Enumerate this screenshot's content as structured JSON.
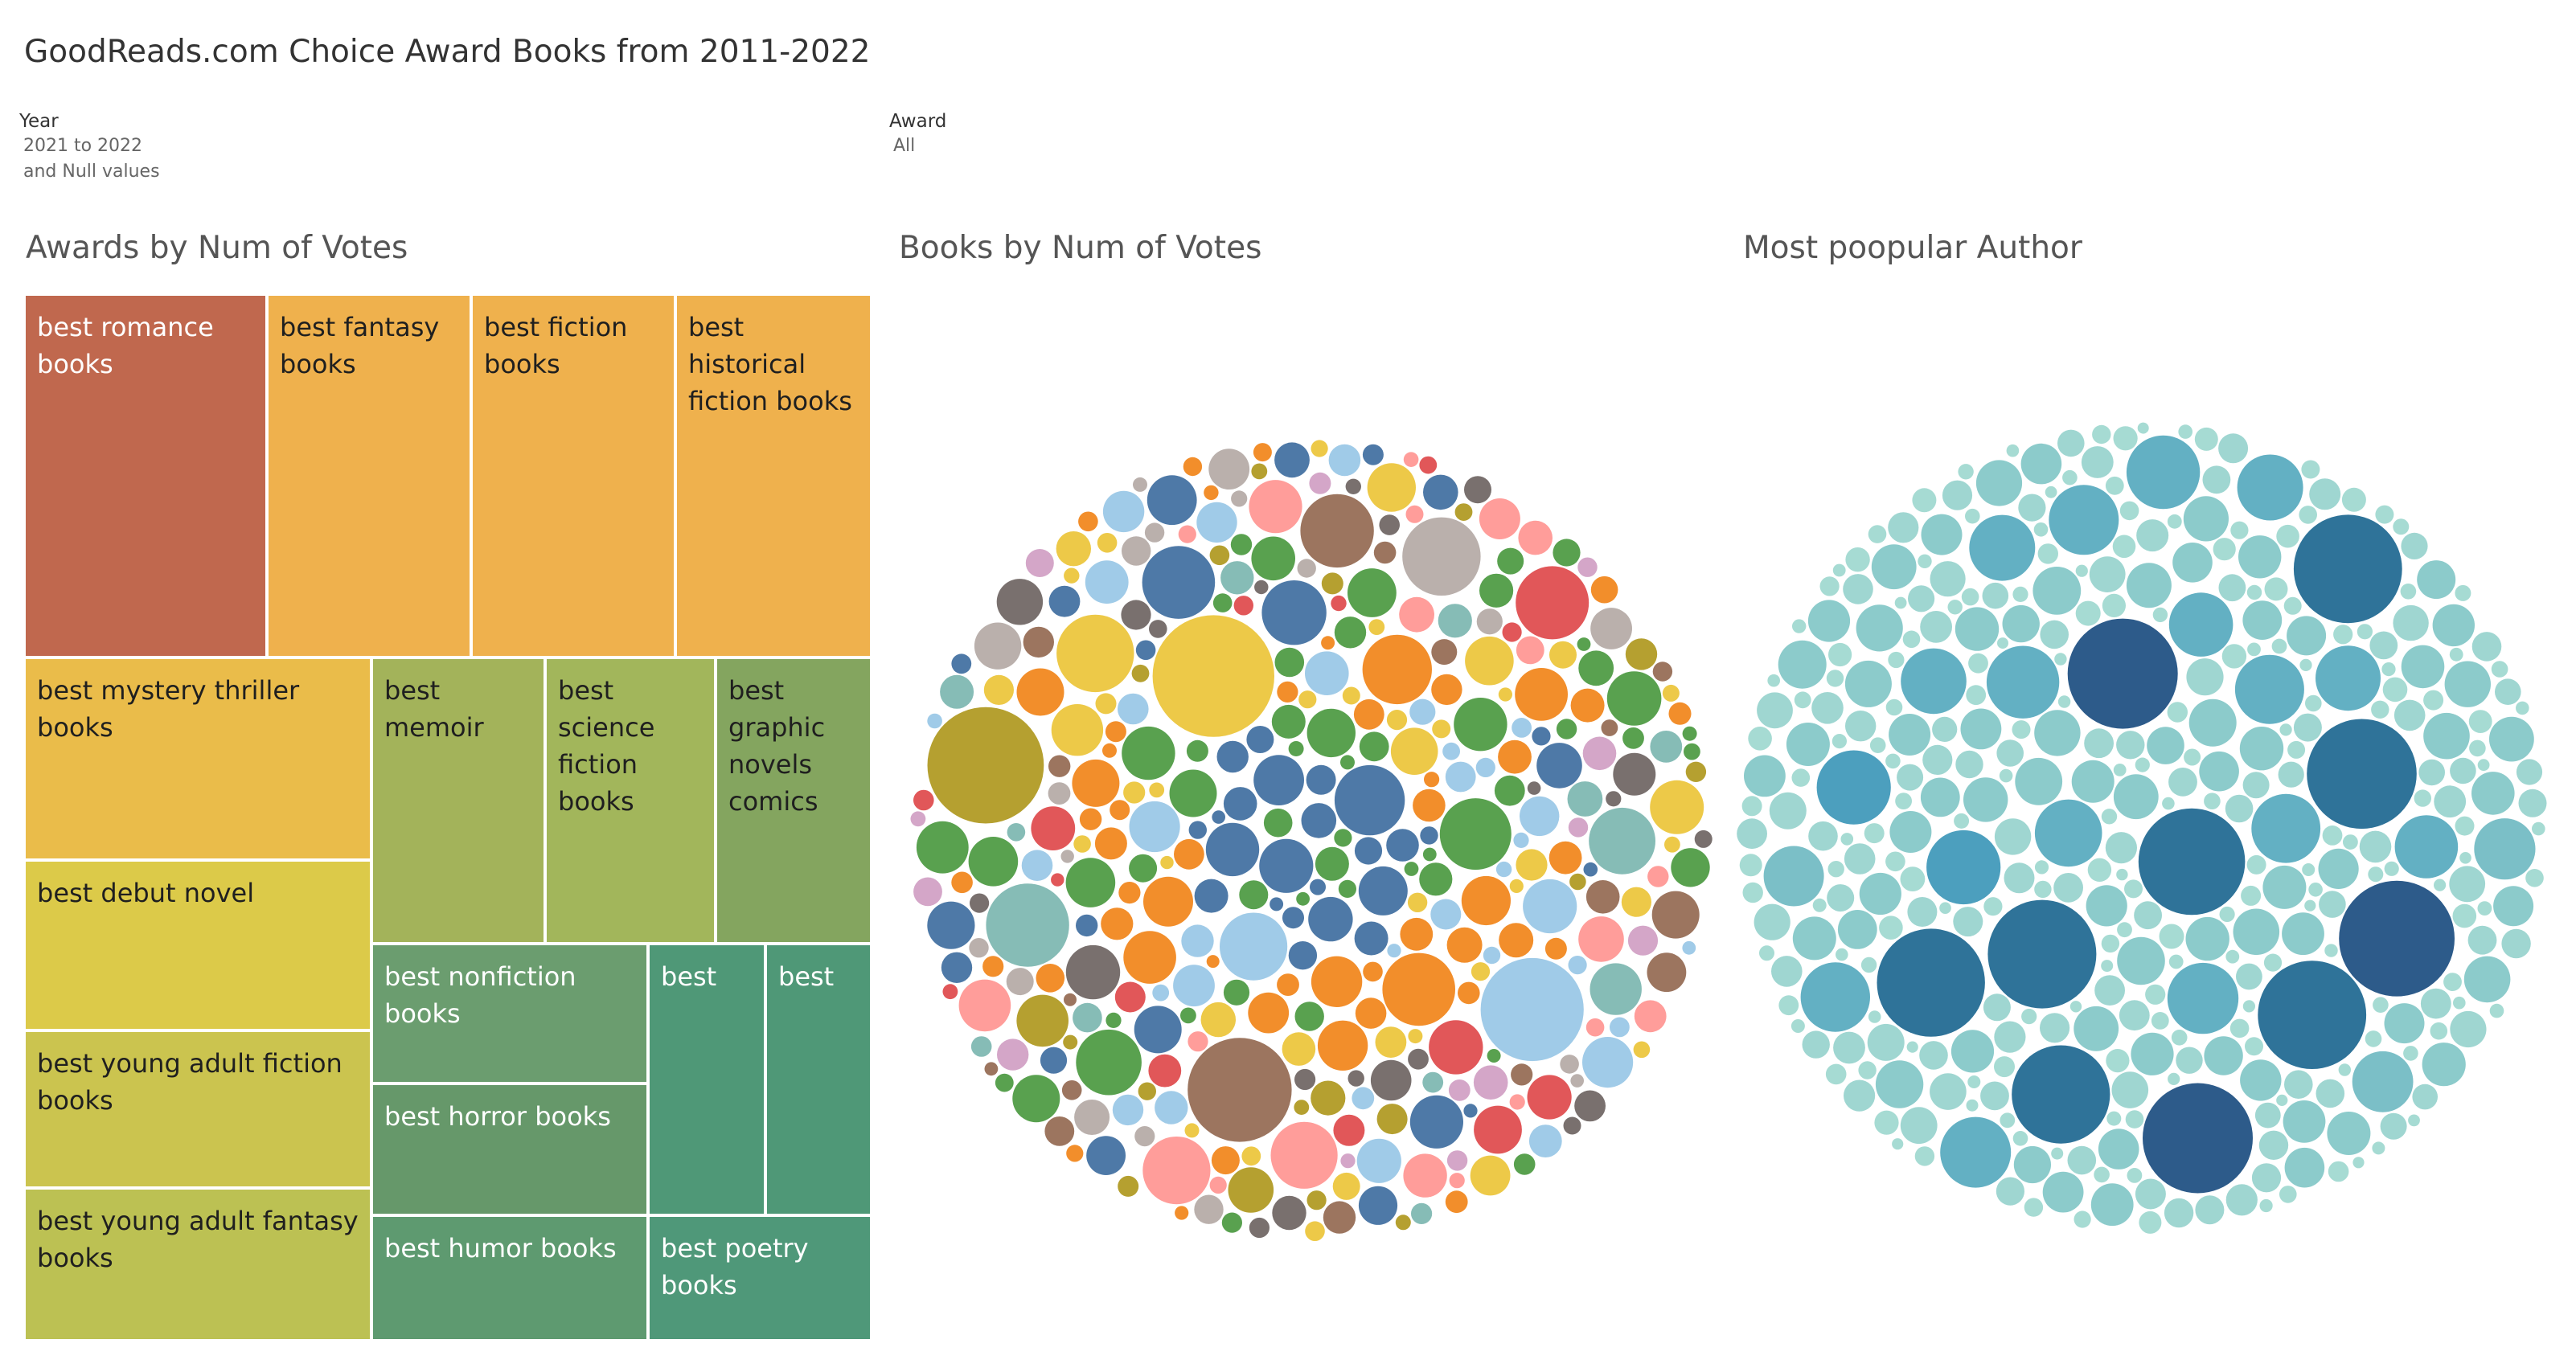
{
  "header": {
    "title": "GoodReads.com Choice Award Books from 2011-2022"
  },
  "filters": {
    "year": {
      "label": "Year",
      "value_line1": "2021 to 2022",
      "value_line2": "and Null values"
    },
    "award": {
      "label": "Award",
      "value": "All"
    }
  },
  "sheets": {
    "treemap_title": "Awards by Num of Votes",
    "books_title": "Books by Num of Votes",
    "authors_title": "Most poopular Author"
  },
  "colors": {
    "accent_dark": "#2d5b8a",
    "palette": [
      "#4e79a7",
      "#f28e2b",
      "#59a14f",
      "#edc948",
      "#e15759",
      "#9c755f",
      "#a0cbe8",
      "#ff9d9a",
      "#d4a6c8",
      "#79706e",
      "#bab0ac",
      "#86bcb6",
      "#b5a030"
    ]
  },
  "chart_data": [
    {
      "type": "treemap",
      "title": "Awards by Num of Votes",
      "categories": [
        "best romance books",
        "best fantasy books",
        "best fiction books",
        "best historical fiction books",
        "best mystery thriller books",
        "best memoir",
        "best science fiction books",
        "best graphic novels comics",
        "best debut novel",
        "best young adult fiction books",
        "best young adult fantasy books",
        "best nonfiction books",
        "best horror books",
        "best humor books",
        "best",
        "best",
        "best poetry books"
      ],
      "values": [
        100,
        85,
        85,
        85,
        81,
        66,
        66,
        60,
        70,
        69,
        65,
        42,
        42,
        42,
        35,
        35,
        24
      ],
      "colors": [
        "#c0684e",
        "#efb14d",
        "#efb14d",
        "#efb14d",
        "#eabc4a",
        "#a3b35a",
        "#a2b65b",
        "#84a55f",
        "#dcca49",
        "#cbc44f",
        "#bcc153",
        "#6b9d6f",
        "#66986a",
        "#5e9a70",
        "#4f9877",
        "#4f9877",
        "#4f9879"
      ]
    },
    {
      "type": "packed-bubble",
      "title": "Books by Num of Votes",
      "count": 380,
      "color_by": "award category",
      "seed": 7
    },
    {
      "type": "packed-bubble",
      "title": "Most poopular Author",
      "count": 400,
      "color_by": "num of votes (light teal to dark blue)",
      "seed": 11
    }
  ]
}
